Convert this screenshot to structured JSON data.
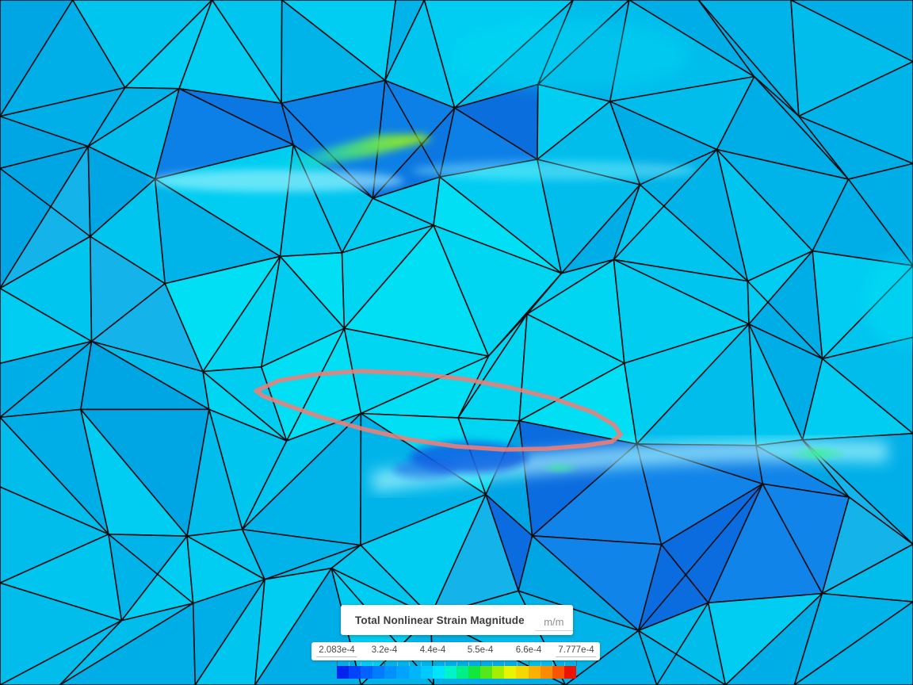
{
  "legend": {
    "title": "Total Nonlinear Strain Magnitude",
    "unit": "m/m",
    "min_label": "2.083e-4",
    "max_label": "7.777e-4",
    "scale_labels": [
      "2.083e-4",
      "3.2e-4",
      "4.4e-4",
      "5.5e-4",
      "6.6e-4",
      "7.777e-4"
    ]
  },
  "colorbar": {
    "segment_colors": [
      "#0023f0",
      "#0045fa",
      "#0063ff",
      "#007cff",
      "#0091ff",
      "#00a3ff",
      "#00b5ff",
      "#00c9ff",
      "#00e4ff",
      "#00f4c8",
      "#00ef88",
      "#12e83c",
      "#52e81c",
      "#a4ee00",
      "#e8f400",
      "#f6d800",
      "#fcb000",
      "#fb8c00",
      "#f75500",
      "#ee1200"
    ],
    "major_tick_every": 4
  },
  "viewport": {
    "field_name": "Total Nonlinear Strain Magnitude",
    "highlight_outline_color": "#f0817a",
    "mesh_edge_color": "#0d0d12",
    "region_colors": {
      "base": [
        "#00bdec",
        "#00c5ef",
        "#00b4e9",
        "#00cdf1",
        "#00aee7"
      ],
      "light_center": [
        "#00d6f1",
        "#00dff4",
        "#00cdf0"
      ],
      "dark_patch": [
        "#0b77e2",
        "#0d80e7",
        "#0a6edd"
      ],
      "dark_bottom": [
        "#0a6cdf",
        "#0d7ce5",
        "#1184e9"
      ],
      "medium": [
        "#00a5e4",
        "#00afe7",
        "#14b4ea"
      ]
    }
  }
}
